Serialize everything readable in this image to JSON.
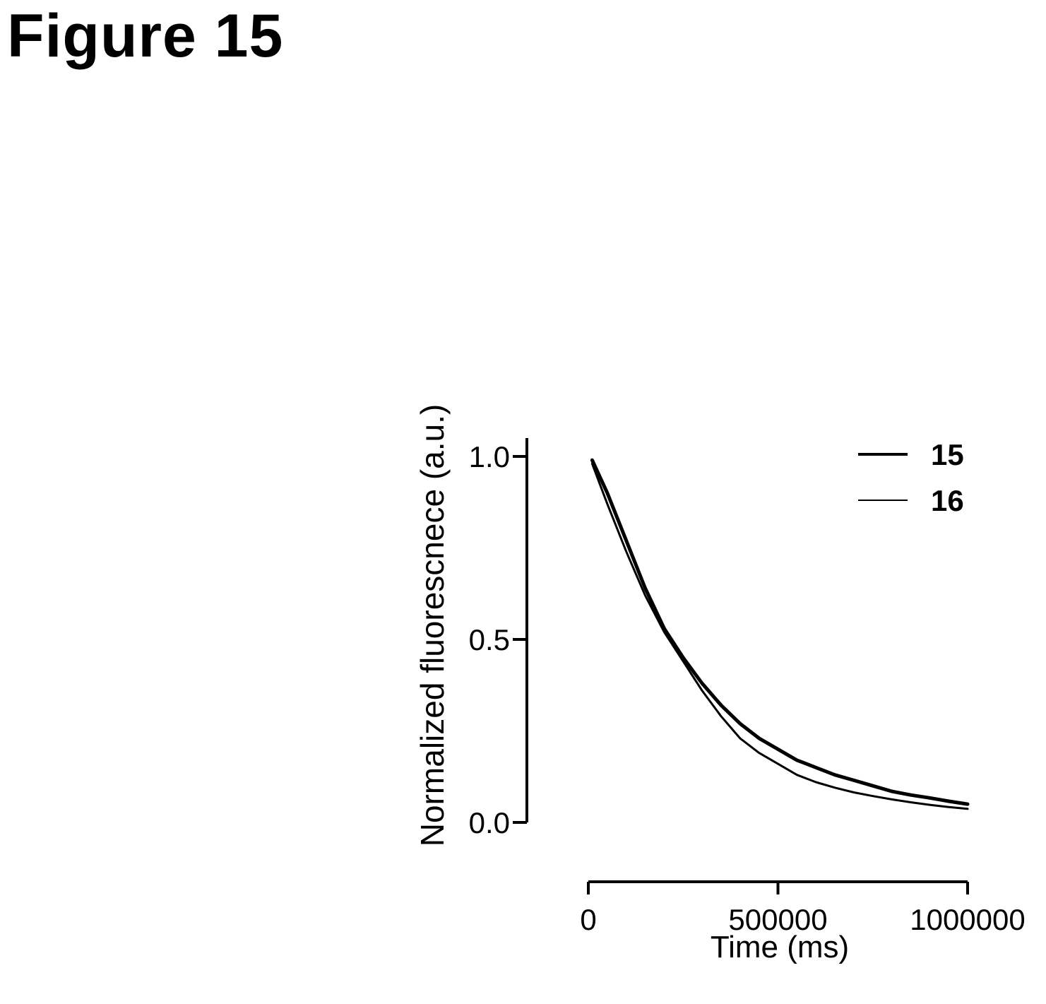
{
  "figure": {
    "title": "Figure 15"
  },
  "chart_data": {
    "type": "line",
    "title": "",
    "xlabel": "Time (ms)",
    "ylabel": "Normalized fluorescnece (a.u.)",
    "xlim": [
      0,
      1000000
    ],
    "ylim": [
      0.0,
      1.0
    ],
    "x_ticks": [
      0,
      500000,
      1000000
    ],
    "x_tick_labels": [
      "0",
      "500000",
      "1000000"
    ],
    "y_ticks": [
      0.0,
      0.5,
      1.0
    ],
    "y_tick_labels": [
      "0.0",
      "0.5",
      "1.0"
    ],
    "grid": false,
    "legend_position": "top-right",
    "series": [
      {
        "name": "15",
        "color": "#000000",
        "style": "thick",
        "x": [
          10000,
          50000,
          100000,
          150000,
          200000,
          250000,
          300000,
          350000,
          400000,
          450000,
          500000,
          550000,
          600000,
          650000,
          700000,
          750000,
          800000,
          850000,
          900000,
          950000,
          1000000
        ],
        "y": [
          0.99,
          0.9,
          0.77,
          0.64,
          0.53,
          0.45,
          0.38,
          0.32,
          0.27,
          0.23,
          0.2,
          0.17,
          0.15,
          0.13,
          0.115,
          0.1,
          0.085,
          0.075,
          0.067,
          0.058,
          0.05
        ]
      },
      {
        "name": "16",
        "color": "#000000",
        "style": "thin",
        "x": [
          10000,
          50000,
          100000,
          150000,
          200000,
          250000,
          300000,
          350000,
          400000,
          450000,
          500000,
          550000,
          600000,
          650000,
          700000,
          750000,
          800000,
          850000,
          900000,
          950000,
          1000000
        ],
        "y": [
          0.98,
          0.87,
          0.74,
          0.62,
          0.52,
          0.44,
          0.36,
          0.29,
          0.23,
          0.19,
          0.16,
          0.13,
          0.11,
          0.095,
          0.082,
          0.072,
          0.063,
          0.055,
          0.048,
          0.042,
          0.037
        ]
      }
    ]
  }
}
